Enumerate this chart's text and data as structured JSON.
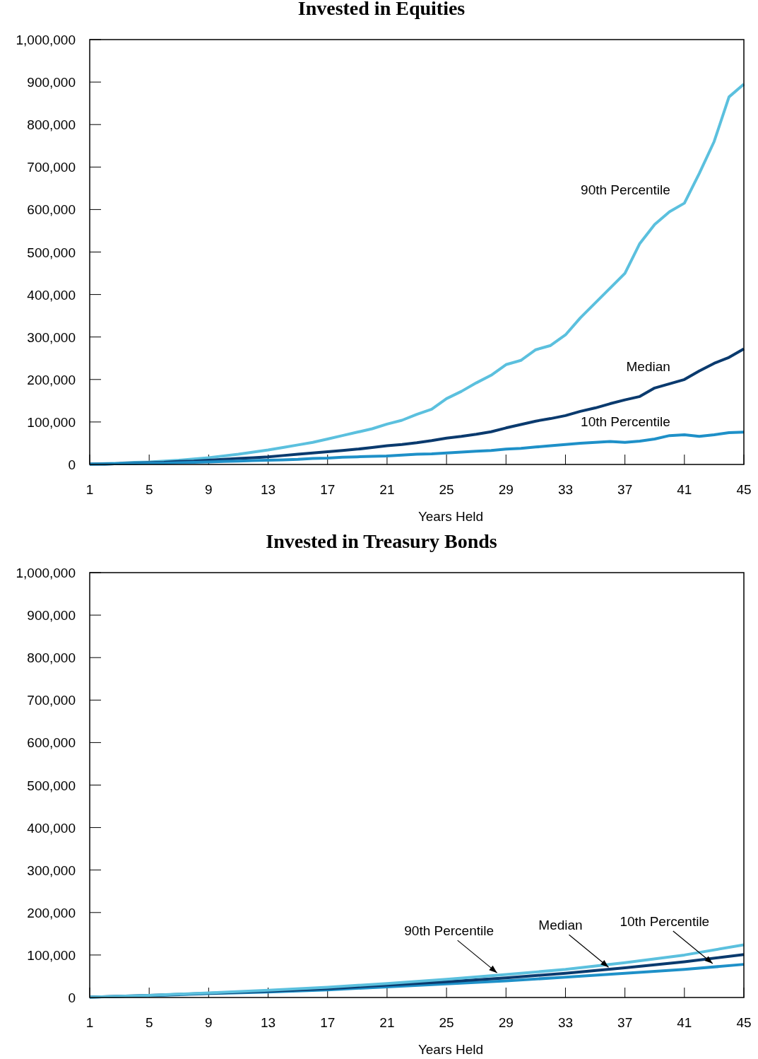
{
  "chart_data": [
    {
      "type": "line",
      "title": "Invested in Equities",
      "xlabel": "Years Held",
      "xlim": [
        1,
        45
      ],
      "xticks": [
        1,
        5,
        9,
        13,
        17,
        21,
        25,
        29,
        33,
        37,
        41,
        45
      ],
      "ylim": [
        0,
        1000000
      ],
      "yticks": [
        {
          "value": 0,
          "label": "0"
        },
        {
          "value": 100000,
          "label": "100,000"
        },
        {
          "value": 200000,
          "label": "200,000"
        },
        {
          "value": 300000,
          "label": "300,000"
        },
        {
          "value": 400000,
          "label": "400,000"
        },
        {
          "value": 500000,
          "label": "500,000"
        },
        {
          "value": 600000,
          "label": "600,000"
        },
        {
          "value": 700000,
          "label": "700,000"
        },
        {
          "value": 800000,
          "label": "800,000"
        },
        {
          "value": 900000,
          "label": "900,000"
        },
        {
          "value": 1000000,
          "label": "1,000,000"
        }
      ],
      "grid": false,
      "legend": false,
      "marker": "none",
      "x": [
        1,
        2,
        3,
        4,
        5,
        6,
        7,
        8,
        9,
        10,
        11,
        12,
        13,
        14,
        15,
        16,
        17,
        18,
        19,
        20,
        21,
        22,
        23,
        24,
        25,
        26,
        27,
        28,
        29,
        30,
        31,
        32,
        33,
        34,
        35,
        36,
        37,
        38,
        39,
        40,
        41,
        42,
        43,
        44,
        45
      ],
      "series": [
        {
          "name": "90th Percentile",
          "color": "#5bc0de",
          "values": [
            1000,
            2000,
            3000,
            5000,
            6000,
            8000,
            10000,
            13000,
            16000,
            20000,
            24000,
            29000,
            34000,
            40000,
            46000,
            52000,
            60000,
            68000,
            76000,
            84000,
            95000,
            104000,
            118000,
            130000,
            155000,
            172000,
            192000,
            210000,
            235000,
            245000,
            270000,
            280000,
            305000,
            345000,
            380000,
            415000,
            450000,
            520000,
            565000,
            595000,
            615000,
            685000,
            760000,
            865000,
            895000
          ]
        },
        {
          "name": "Median",
          "color": "#0a3a6e",
          "values": [
            1000,
            1000,
            2000,
            3000,
            4000,
            5000,
            7000,
            8000,
            10000,
            12000,
            14000,
            16000,
            18000,
            21000,
            24000,
            27000,
            30000,
            33000,
            36000,
            40000,
            44000,
            47000,
            51000,
            56000,
            62000,
            66000,
            71000,
            77000,
            86000,
            94000,
            102000,
            108000,
            115000,
            125000,
            133000,
            143000,
            152000,
            160000,
            180000,
            190000,
            200000,
            220000,
            238000,
            252000,
            272000
          ]
        },
        {
          "name": "10th Percentile",
          "color": "#1e90c8",
          "values": [
            1000,
            1000,
            2000,
            2000,
            3000,
            3000,
            4000,
            5000,
            6000,
            7000,
            8000,
            9000,
            10000,
            11000,
            12000,
            14000,
            15000,
            17000,
            18000,
            19000,
            20000,
            22000,
            24000,
            25000,
            27000,
            29000,
            31000,
            33000,
            36000,
            38000,
            41000,
            44000,
            47000,
            50000,
            52000,
            54000,
            52000,
            55000,
            60000,
            68000,
            70000,
            66000,
            70000,
            75000,
            76000
          ]
        }
      ]
    },
    {
      "type": "line",
      "title": "Invested in Treasury Bonds",
      "xlabel": "Years Held",
      "xlim": [
        1,
        45
      ],
      "xticks": [
        1,
        5,
        9,
        13,
        17,
        21,
        25,
        29,
        33,
        37,
        41,
        45
      ],
      "ylim": [
        0,
        1000000
      ],
      "yticks": [
        {
          "value": 0,
          "label": "0"
        },
        {
          "value": 100000,
          "label": "100,000"
        },
        {
          "value": 200000,
          "label": "200,000"
        },
        {
          "value": 300000,
          "label": "300,000"
        },
        {
          "value": 400000,
          "label": "400,000"
        },
        {
          "value": 500000,
          "label": "500,000"
        },
        {
          "value": 600000,
          "label": "600,000"
        },
        {
          "value": 700000,
          "label": "700,000"
        },
        {
          "value": 800000,
          "label": "800,000"
        },
        {
          "value": 900000,
          "label": "900,000"
        },
        {
          "value": 1000000,
          "label": "1,000,000"
        }
      ],
      "grid": false,
      "legend": false,
      "marker": "none",
      "x": [
        1,
        5,
        9,
        13,
        17,
        21,
        25,
        29,
        33,
        37,
        41,
        45
      ],
      "series": [
        {
          "color": "#1e90c8",
          "values": [
            1000,
            4000,
            9000,
            13000,
            18000,
            25000,
            32000,
            39000,
            48000,
            57000,
            66000,
            78000
          ]
        },
        {
          "color": "#0a3a6e",
          "values": [
            1000,
            5000,
            10000,
            15000,
            21000,
            29000,
            37000,
            46000,
            57000,
            70000,
            84000,
            101000
          ]
        },
        {
          "color": "#5bc0de",
          "values": [
            1000,
            5000,
            11000,
            17000,
            24000,
            33000,
            43000,
            54000,
            66000,
            82000,
            100000,
            124000
          ]
        }
      ],
      "annotations": [
        {
          "text": "90th Percentile",
          "x": 28.4,
          "y": 58000
        },
        {
          "text": "Median",
          "x": 35.9,
          "y": 71000
        },
        {
          "text": "10th Percentile",
          "x": 42.9,
          "y": 80000
        }
      ]
    }
  ]
}
